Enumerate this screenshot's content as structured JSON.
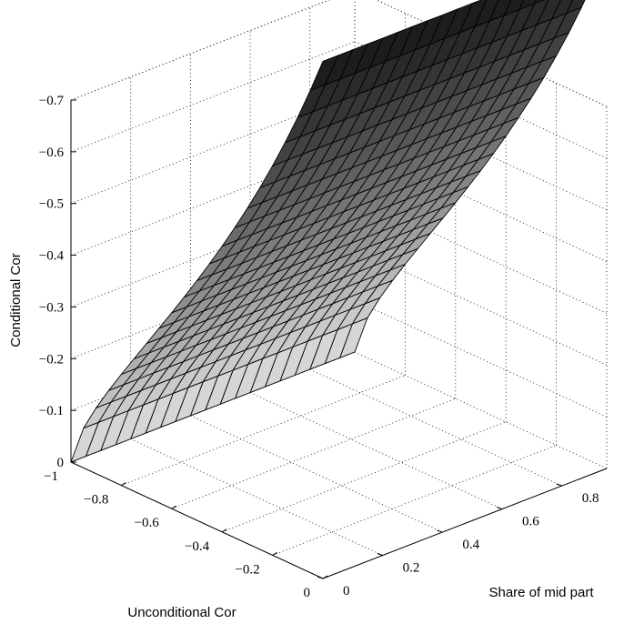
{
  "chart_data": {
    "type": "surface",
    "title": "",
    "xlabel": "Unconditional Cor",
    "ylabel": "Share of mid part",
    "zlabel": "Conditional Cor",
    "xlim": [
      -1,
      0
    ],
    "ylim": [
      0,
      0.95
    ],
    "zlim": [
      0,
      -0.7
    ],
    "x_ticks": [
      "-1",
      "-0.8",
      "-0.6",
      "-0.4",
      "-0.2",
      "0"
    ],
    "y_ticks": [
      "0",
      "0.2",
      "0.4",
      "0.6",
      "0.8"
    ],
    "z_ticks": [
      "0",
      "-0.1",
      "-0.2",
      "-0.3",
      "-0.4",
      "-0.5",
      "-0.6",
      "-0.7"
    ],
    "grid": true,
    "x_grid": [
      -1,
      -0.95,
      -0.9,
      -0.85,
      -0.8,
      -0.75,
      -0.7,
      -0.65,
      -0.6,
      -0.55,
      -0.5,
      -0.45,
      -0.4,
      -0.35,
      -0.3,
      -0.25,
      -0.2,
      -0.15,
      -0.1,
      -0.05,
      0
    ],
    "y_grid": [
      0,
      0.05,
      0.1,
      0.15,
      0.2,
      0.25,
      0.3,
      0.35,
      0.4,
      0.45,
      0.5,
      0.55,
      0.6,
      0.65,
      0.7,
      0.75,
      0.8,
      0.85,
      0.9,
      0.95
    ],
    "surface": "z = -((1+x)/(1-x))^0.7, independent of y",
    "colormap": "gray"
  }
}
